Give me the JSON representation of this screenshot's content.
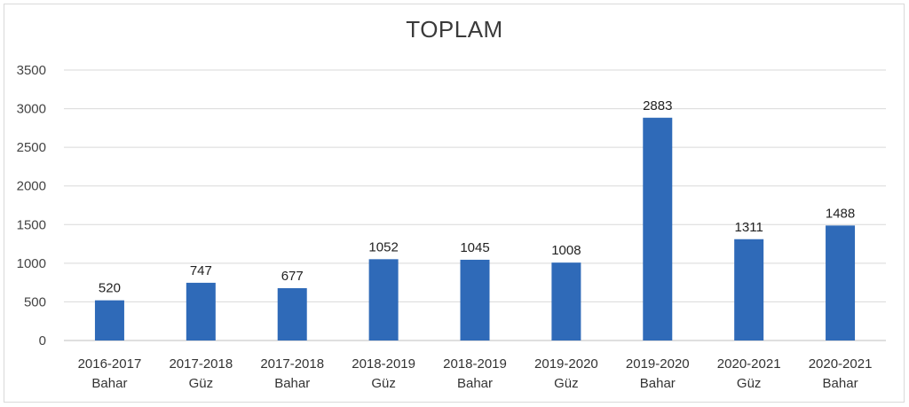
{
  "chart_data": {
    "type": "bar",
    "title": "TOPLAM",
    "xlabel": "",
    "ylabel": "",
    "ylim": [
      0,
      3500
    ],
    "yticks": [
      0,
      500,
      1000,
      1500,
      2000,
      2500,
      3000,
      3500
    ],
    "grid": true,
    "color": "#2f6ab8",
    "categories": [
      [
        "2016-2017",
        "Bahar"
      ],
      [
        "2017-2018",
        "Güz"
      ],
      [
        "2017-2018",
        "Bahar"
      ],
      [
        "2018-2019",
        "Güz"
      ],
      [
        "2018-2019",
        "Bahar"
      ],
      [
        "2019-2020",
        "Güz"
      ],
      [
        "2019-2020",
        "Bahar"
      ],
      [
        "2020-2021",
        "Güz"
      ],
      [
        "2020-2021",
        "Bahar"
      ]
    ],
    "values": [
      520,
      747,
      677,
      1052,
      1045,
      1008,
      2883,
      1311,
      1488
    ]
  }
}
